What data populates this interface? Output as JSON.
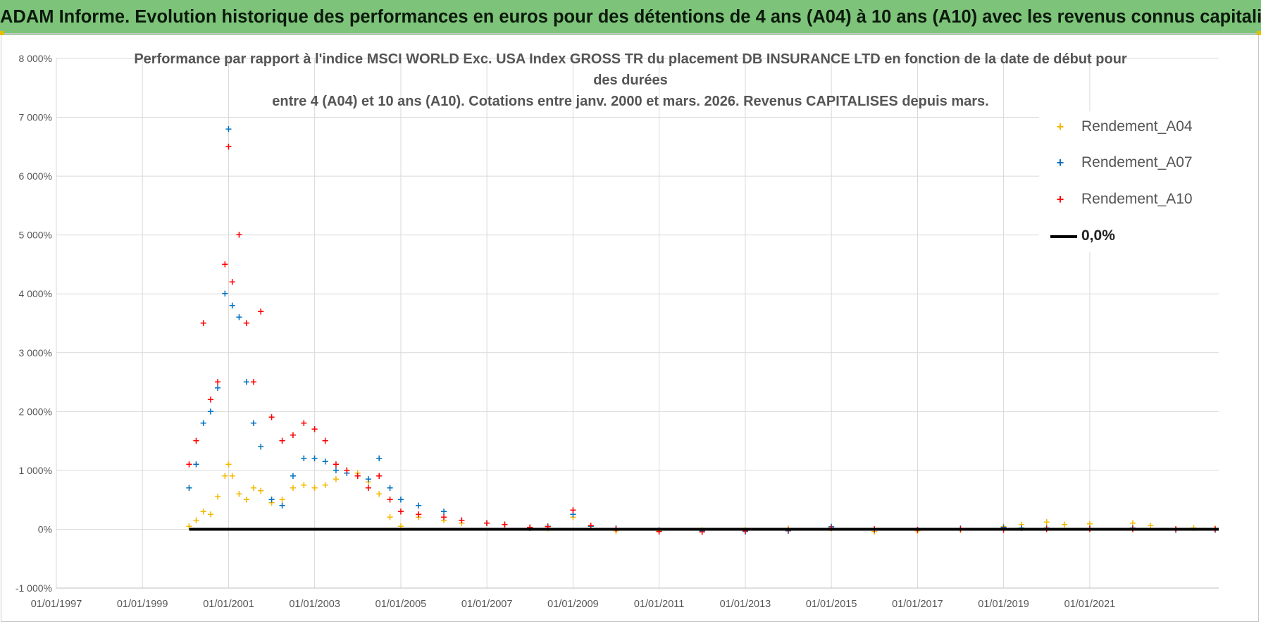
{
  "banner": {
    "title": "ADAM Informe. Evolution historique des performances en euros pour des détentions de 4 ans (A04) à 10 ans (A10) avec les revenus connus capitalisés",
    "color": "#7dc47a"
  },
  "chart_data": {
    "type": "scatter",
    "title_lines": [
      "Performance par rapport à l'indice MSCI WORLD Exc. USA Index GROSS TR  du placement DB INSURANCE LTD en fonction de la date de début pour",
      "des durées",
      "entre 4 (A04) et 10 ans (A10).  Cotations entre janv. 2000 et mars. 2026.  Revenus CAPITALISES depuis mars."
    ],
    "xlabel": "",
    "ylabel": "",
    "x_range": [
      "1997-01-01",
      "2023-12-31"
    ],
    "ylim": [
      -1000,
      8000
    ],
    "y_ticks": [
      -1000,
      0,
      1000,
      2000,
      3000,
      4000,
      5000,
      6000,
      7000,
      8000
    ],
    "y_tick_labels": [
      "-1 000%",
      "0%",
      "1 000%",
      "2 000%",
      "3 000%",
      "4 000%",
      "5 000%",
      "6 000%",
      "7 000%",
      "8 000%"
    ],
    "x_ticks": [
      "1997-01-01",
      "1999-01-01",
      "2001-01-01",
      "2003-01-01",
      "2005-01-01",
      "2007-01-01",
      "2009-01-01",
      "2011-01-01",
      "2013-01-01",
      "2015-01-01",
      "2017-01-01",
      "2019-01-01",
      "2021-01-01"
    ],
    "x_tick_labels": [
      "01/01/1997",
      "01/01/1999",
      "01/01/2001",
      "01/01/2003",
      "01/01/2005",
      "01/01/2007",
      "01/01/2009",
      "01/01/2011",
      "01/01/2013",
      "01/01/2015",
      "01/01/2017",
      "01/01/2019",
      "01/01/2021"
    ],
    "grid": true,
    "legend_position": "top-right",
    "marker": "+",
    "series": [
      {
        "name": "Rendement_A04",
        "color": "#f5b800",
        "points": [
          [
            "2000-02-01",
            50
          ],
          [
            "2000-04-01",
            150
          ],
          [
            "2000-06-01",
            300
          ],
          [
            "2000-08-01",
            250
          ],
          [
            "2000-10-01",
            550
          ],
          [
            "2000-12-01",
            900
          ],
          [
            "2001-01-01",
            1100
          ],
          [
            "2001-02-01",
            900
          ],
          [
            "2001-04-01",
            600
          ],
          [
            "2001-06-01",
            500
          ],
          [
            "2001-08-01",
            700
          ],
          [
            "2001-10-01",
            650
          ],
          [
            "2002-01-01",
            450
          ],
          [
            "2002-04-01",
            500
          ],
          [
            "2002-07-01",
            700
          ],
          [
            "2002-10-01",
            750
          ],
          [
            "2003-01-01",
            700
          ],
          [
            "2003-04-01",
            750
          ],
          [
            "2003-07-01",
            850
          ],
          [
            "2003-10-01",
            1000
          ],
          [
            "2004-01-01",
            950
          ],
          [
            "2004-04-01",
            800
          ],
          [
            "2004-07-01",
            600
          ],
          [
            "2004-10-01",
            200
          ],
          [
            "2005-01-01",
            50
          ],
          [
            "2005-06-01",
            200
          ],
          [
            "2006-01-01",
            150
          ],
          [
            "2006-06-01",
            100
          ],
          [
            "2007-01-01",
            100
          ],
          [
            "2007-06-01",
            80
          ],
          [
            "2008-01-01",
            20
          ],
          [
            "2008-06-01",
            10
          ],
          [
            "2009-01-01",
            200
          ],
          [
            "2009-06-01",
            50
          ],
          [
            "2010-01-01",
            -30
          ],
          [
            "2011-01-01",
            -30
          ],
          [
            "2012-01-01",
            -20
          ],
          [
            "2013-01-01",
            -10
          ],
          [
            "2014-01-01",
            10
          ],
          [
            "2015-01-01",
            10
          ],
          [
            "2016-01-01",
            -40
          ],
          [
            "2017-01-01",
            -30
          ],
          [
            "2018-01-01",
            -20
          ],
          [
            "2019-01-01",
            40
          ],
          [
            "2019-06-01",
            80
          ],
          [
            "2020-01-01",
            120
          ],
          [
            "2020-06-01",
            80
          ],
          [
            "2021-01-01",
            90
          ],
          [
            "2022-01-01",
            100
          ],
          [
            "2022-06-01",
            60
          ],
          [
            "2023-06-01",
            20
          ],
          [
            "2023-12-01",
            10
          ]
        ]
      },
      {
        "name": "Rendement_A07",
        "color": "#0070c0",
        "points": [
          [
            "2000-02-01",
            700
          ],
          [
            "2000-04-01",
            1100
          ],
          [
            "2000-06-01",
            1800
          ],
          [
            "2000-08-01",
            2000
          ],
          [
            "2000-10-01",
            2400
          ],
          [
            "2000-12-01",
            4000
          ],
          [
            "2001-01-01",
            6800
          ],
          [
            "2001-02-01",
            3800
          ],
          [
            "2001-04-01",
            3600
          ],
          [
            "2001-06-01",
            2500
          ],
          [
            "2001-08-01",
            1800
          ],
          [
            "2001-10-01",
            1400
          ],
          [
            "2002-01-01",
            500
          ],
          [
            "2002-04-01",
            400
          ],
          [
            "2002-07-01",
            900
          ],
          [
            "2002-10-01",
            1200
          ],
          [
            "2003-01-01",
            1200
          ],
          [
            "2003-04-01",
            1150
          ],
          [
            "2003-07-01",
            1000
          ],
          [
            "2003-10-01",
            950
          ],
          [
            "2004-01-01",
            900
          ],
          [
            "2004-04-01",
            850
          ],
          [
            "2004-07-01",
            1200
          ],
          [
            "2004-10-01",
            700
          ],
          [
            "2005-01-01",
            500
          ],
          [
            "2005-06-01",
            400
          ],
          [
            "2006-01-01",
            300
          ],
          [
            "2006-06-01",
            150
          ],
          [
            "2007-01-01",
            100
          ],
          [
            "2007-06-01",
            80
          ],
          [
            "2008-01-01",
            20
          ],
          [
            "2008-06-01",
            50
          ],
          [
            "2009-01-01",
            250
          ],
          [
            "2009-06-01",
            50
          ],
          [
            "2010-01-01",
            10
          ],
          [
            "2011-01-01",
            -20
          ],
          [
            "2012-01-01",
            -30
          ],
          [
            "2013-01-01",
            -40
          ],
          [
            "2014-01-01",
            -30
          ],
          [
            "2015-01-01",
            40
          ],
          [
            "2016-01-01",
            -10
          ],
          [
            "2017-01-01",
            -10
          ],
          [
            "2018-01-01",
            10
          ],
          [
            "2019-01-01",
            30
          ],
          [
            "2019-06-01",
            20
          ],
          [
            "2020-01-01",
            20
          ],
          [
            "2021-01-01",
            10
          ],
          [
            "2022-01-01",
            20
          ],
          [
            "2023-01-01",
            -10
          ],
          [
            "2023-12-01",
            -10
          ]
        ]
      },
      {
        "name": "Rendement_A10",
        "color": "#ff0000",
        "points": [
          [
            "2000-02-01",
            1100
          ],
          [
            "2000-04-01",
            1500
          ],
          [
            "2000-06-01",
            3500
          ],
          [
            "2000-08-01",
            2200
          ],
          [
            "2000-10-01",
            2500
          ],
          [
            "2000-12-01",
            4500
          ],
          [
            "2001-01-01",
            6500
          ],
          [
            "2001-02-01",
            4200
          ],
          [
            "2001-04-01",
            5000
          ],
          [
            "2001-06-01",
            3500
          ],
          [
            "2001-08-01",
            2500
          ],
          [
            "2001-10-01",
            3700
          ],
          [
            "2002-01-01",
            1900
          ],
          [
            "2002-04-01",
            1500
          ],
          [
            "2002-07-01",
            1600
          ],
          [
            "2002-10-01",
            1800
          ],
          [
            "2003-01-01",
            1700
          ],
          [
            "2003-04-01",
            1500
          ],
          [
            "2003-07-01",
            1100
          ],
          [
            "2003-10-01",
            1000
          ],
          [
            "2004-01-01",
            900
          ],
          [
            "2004-04-01",
            700
          ],
          [
            "2004-07-01",
            900
          ],
          [
            "2004-10-01",
            500
          ],
          [
            "2005-01-01",
            300
          ],
          [
            "2005-06-01",
            250
          ],
          [
            "2006-01-01",
            200
          ],
          [
            "2006-06-01",
            150
          ],
          [
            "2007-01-01",
            100
          ],
          [
            "2007-06-01",
            80
          ],
          [
            "2008-01-01",
            30
          ],
          [
            "2008-06-01",
            40
          ],
          [
            "2009-01-01",
            320
          ],
          [
            "2009-06-01",
            60
          ],
          [
            "2010-01-01",
            0
          ],
          [
            "2011-01-01",
            -40
          ],
          [
            "2012-01-01",
            -50
          ],
          [
            "2013-01-01",
            -30
          ],
          [
            "2014-01-01",
            -20
          ],
          [
            "2015-01-01",
            20
          ],
          [
            "2016-01-01",
            0
          ],
          [
            "2017-01-01",
            -10
          ],
          [
            "2018-01-01",
            0
          ],
          [
            "2019-01-01",
            -10
          ],
          [
            "2020-01-01",
            0
          ],
          [
            "2021-01-01",
            0
          ],
          [
            "2022-01-01",
            0
          ],
          [
            "2023-01-01",
            0
          ],
          [
            "2023-12-01",
            0
          ]
        ]
      }
    ],
    "reference_line": {
      "name": "0,0%",
      "value": 0,
      "from": "2000-02-01",
      "to": "2023-12-31",
      "color": "#000000"
    }
  }
}
